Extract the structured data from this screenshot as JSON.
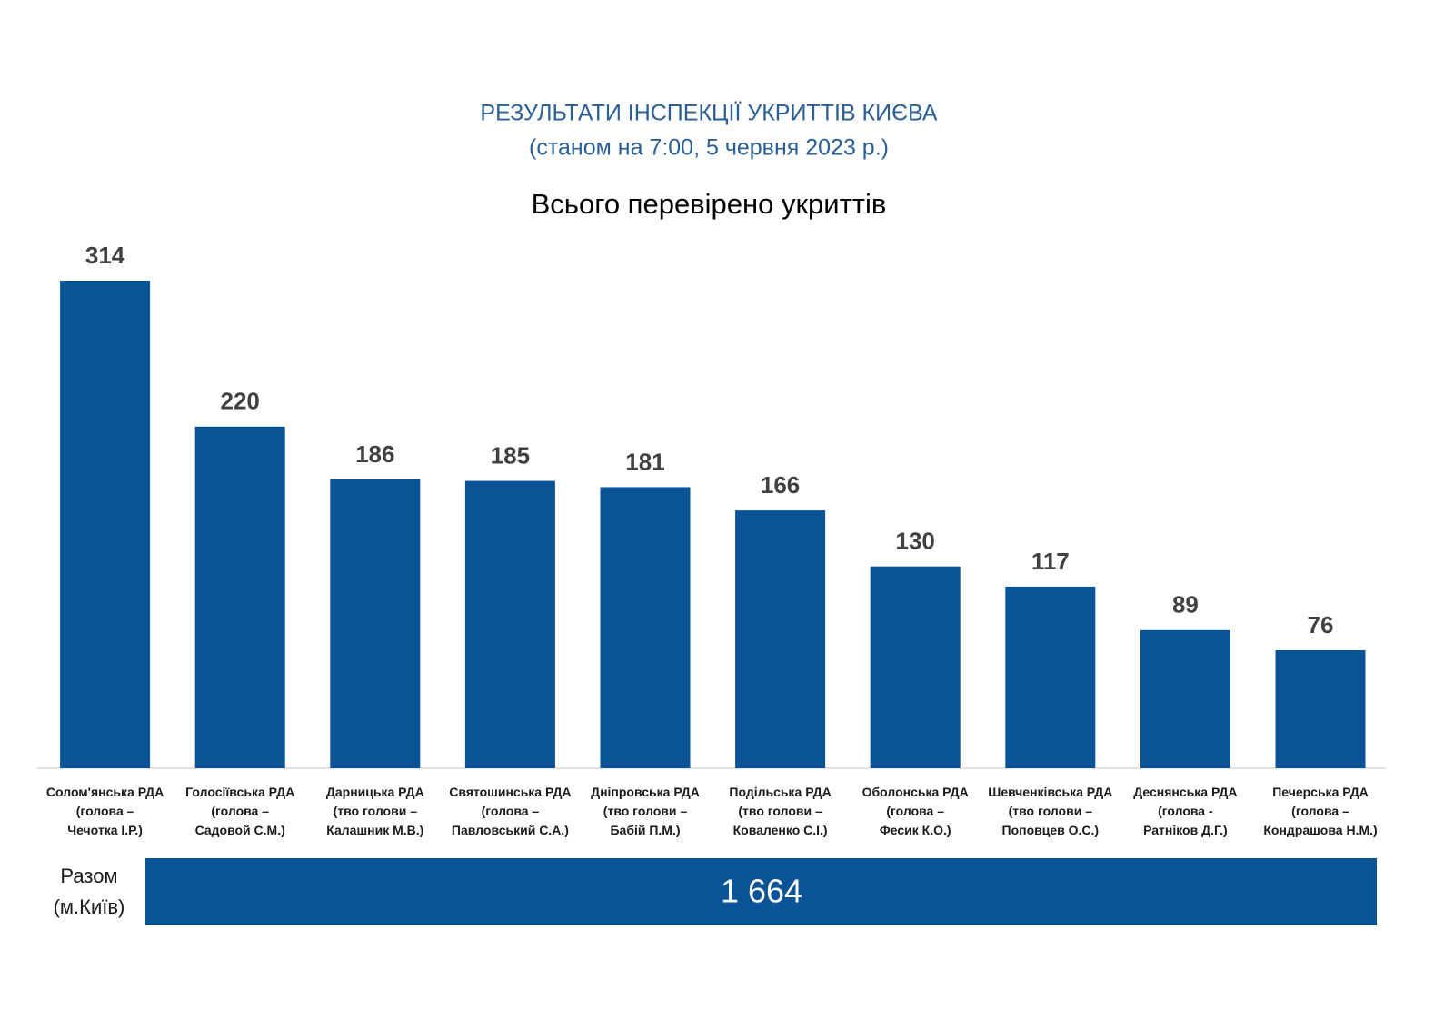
{
  "chart_data": {
    "type": "bar",
    "title": "РЕЗУЛЬТАТИ ІНСПЕКЦІЇ УКРИТТІВ КИЄВА",
    "subtitle": "(станом на 7:00, 5 червня 2023 р.)",
    "chart_title": "Всього перевірено укриттів",
    "categories": [
      "Солом'янська РДА\n(голова –\nЧечотка І.Р.)",
      "Голосіївська РДА\n(голова –\nСадовой С.М.)",
      "Дарницька  РДА\n(тво голови –\nКалашник М.В.)",
      "Святошинська РДА\n(голова –\nПавловський С.А.)",
      "Дніпровська РДА\n(тво голови –\nБабій П.М.)",
      "Подільська РДА\n(тво голови –\nКоваленко С.І.)",
      "Оболонська РДА\n(голова –\nФесик К.О.)",
      "Шевченківська  РДА\n(тво голови –\nПоповцев О.С.)",
      "Деснянська РДА\n(голова -\nРатніков Д.Г.)",
      "Печерська РДА\n(голова –\nКондрашова Н.М.)"
    ],
    "values": [
      314,
      220,
      186,
      185,
      181,
      166,
      130,
      117,
      89,
      76
    ],
    "color": "#0a5396",
    "total": {
      "label": "Разом\n(м.Київ)",
      "value": 1664,
      "value_label": "1 664"
    }
  }
}
